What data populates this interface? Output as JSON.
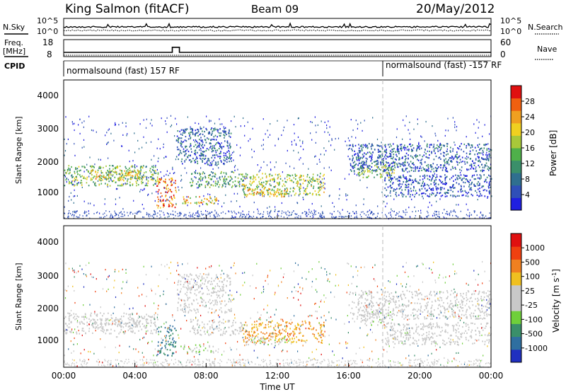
{
  "header": {
    "station": "King Salmon (fitACF)",
    "beam": "Beam 09",
    "date": "20/May/2012"
  },
  "sky_panel": {
    "left_label": "N.Sky",
    "right_label": "N.Search",
    "left_ticks": [
      "10^5",
      "10^0"
    ],
    "right_ticks": [
      "10^5",
      "10^0"
    ]
  },
  "freq_panel": {
    "left_label_1": "Freq.",
    "left_label_2": "[MHz]",
    "right_label": "Nave",
    "left_ticks": [
      "18",
      "8"
    ],
    "right_ticks": [
      "60",
      "0"
    ]
  },
  "cpid_panel": {
    "label": "CPID",
    "programs": [
      "normalsound (fast) 157 RF",
      "normalsound (fast) -157 RF"
    ]
  },
  "x_axis": {
    "title": "Time UT",
    "ticks": [
      "00:00",
      "04:00",
      "08:00",
      "12:00",
      "16:00",
      "20:00",
      "00:00"
    ]
  },
  "power_panel": {
    "ylabel": "Slant Range [km]",
    "yticks": [
      "4000",
      "3000",
      "2000",
      "1000"
    ],
    "colorbar_label": "Power [dB]",
    "colorbar_ticks": [
      "28",
      "24",
      "20",
      "16",
      "12",
      "8",
      "4"
    ],
    "colors": [
      "#1f1fe0",
      "#2f4fb8",
      "#2f6f8f",
      "#3a8f6a",
      "#4fb04a",
      "#a8c83a",
      "#f0d020",
      "#f0a020",
      "#f06010",
      "#e01010"
    ]
  },
  "velocity_panel": {
    "ylabel": "Slant Range [km]",
    "yticks": [
      "4000",
      "3000",
      "2000",
      "1000"
    ],
    "colorbar_label": "Velocity [m s-1]",
    "colorbar_ticks": [
      "1000",
      "500",
      "100",
      "25",
      "-25",
      "-100",
      "-500",
      "-1000"
    ],
    "colors": [
      "#2030c0",
      "#2f6fa0",
      "#3a8f6a",
      "#6fcf3a",
      "#c8c8c8",
      "#c8c8c8",
      "#f0c020",
      "#f08020",
      "#f04010",
      "#e01010"
    ]
  },
  "chart_data": {
    "type": "heatmap",
    "x_range_hours": [
      0,
      24
    ],
    "y_range_km": [
      180,
      4600
    ],
    "power_scale_db": [
      0,
      30
    ],
    "velocity_scale_ms": [
      -1000,
      1000
    ],
    "backscatter_regions": [
      {
        "t_start": 0.0,
        "t_end": 5.3,
        "range_km": [
          1250,
          1900
        ],
        "power_db": 14,
        "velocity_ms": 0
      },
      {
        "t_start": 1.5,
        "t_end": 4.5,
        "range_km": [
          1450,
          1750
        ],
        "power_db": 20,
        "velocity_ms": 0
      },
      {
        "t_start": 5.2,
        "t_end": 6.3,
        "range_km": [
          550,
          1500
        ],
        "power_db": 24,
        "velocity_ms": -600
      },
      {
        "t_start": 6.3,
        "t_end": 9.4,
        "range_km": [
          1900,
          3100
        ],
        "power_db": 6,
        "velocity_ms": 50
      },
      {
        "t_start": 6.5,
        "t_end": 8.6,
        "range_km": [
          650,
          900
        ],
        "power_db": 20,
        "velocity_ms": -200
      },
      {
        "t_start": 7.0,
        "t_end": 10.0,
        "range_km": [
          1200,
          1700
        ],
        "power_db": 12,
        "velocity_ms": 0
      },
      {
        "t_start": 10.0,
        "t_end": 14.6,
        "range_km": [
          950,
          1650
        ],
        "power_db": 16,
        "velocity_ms": 400
      },
      {
        "t_start": 10.2,
        "t_end": 12.6,
        "range_km": [
          900,
          1150
        ],
        "power_db": 20,
        "velocity_ms": -150
      },
      {
        "t_start": 16.5,
        "t_end": 18.6,
        "range_km": [
          1500,
          2000
        ],
        "power_db": 14,
        "velocity_ms": -80
      },
      {
        "t_start": 16.0,
        "t_end": 24.0,
        "range_km": [
          1700,
          2600
        ],
        "power_db": 6,
        "velocity_ms": 20
      },
      {
        "t_start": 18.0,
        "t_end": 24.0,
        "range_km": [
          900,
          1600
        ],
        "power_db": 4,
        "velocity_ms": 20
      }
    ],
    "frequency_mhz": {
      "baseline": 10.5,
      "step_t": [
        6.1,
        6.5
      ],
      "step_value": 13.5
    },
    "mode_change_hour": 18.0
  }
}
